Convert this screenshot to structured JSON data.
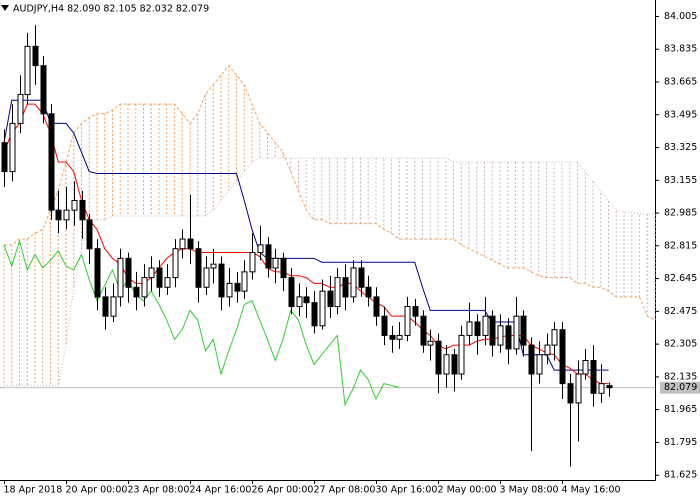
{
  "chart_data": {
    "type": "candlestick",
    "title": "AUDJPY,H4  82.090 82.105 82.032 82.079",
    "categories": [
      "18 Apr 2018",
      null,
      null,
      null,
      null,
      null,
      null,
      null,
      "20 Apr 00:00",
      null,
      null,
      null,
      null,
      null,
      null,
      null,
      "23 Apr 08:00",
      null,
      null,
      null,
      null,
      null,
      null,
      null,
      "24 Apr 16:00",
      null,
      null,
      null,
      null,
      null,
      null,
      null,
      "26 Apr 00:00",
      null,
      null,
      null,
      null,
      null,
      null,
      null,
      "27 Apr 08:00",
      null,
      null,
      null,
      null,
      null,
      null,
      null,
      "30 Apr 16:00",
      null,
      null,
      null,
      null,
      null,
      null,
      null,
      "2 May 00:00",
      null,
      null,
      null,
      null,
      null,
      null,
      null,
      "3 May 08:00",
      null,
      null,
      null,
      null,
      null,
      null,
      null,
      "4 May 16:00",
      null,
      null,
      null,
      null,
      null,
      null,
      null,
      null,
      null,
      null,
      null,
      null
    ],
    "ohlc": {
      "up_color": "#ffffff",
      "down_color": "#000000",
      "open": [
        83.35,
        83.2,
        83.45,
        83.6,
        83.85,
        83.75,
        83.5,
        83.0,
        82.95,
        83.0,
        83.05,
        82.95,
        82.8,
        82.55,
        82.45,
        82.55,
        82.75,
        82.6,
        82.55,
        82.65,
        82.7,
        82.6,
        82.65,
        82.8,
        82.85,
        82.8,
        82.6,
        82.7,
        82.72,
        82.55,
        82.62,
        82.58,
        82.68,
        82.78,
        82.82,
        82.7,
        82.75,
        82.65,
        82.5,
        82.55,
        82.52,
        82.4,
        82.58,
        82.5,
        82.65,
        82.55,
        82.7,
        82.6,
        82.55,
        82.45,
        82.35,
        82.33,
        82.35,
        82.5,
        82.45,
        82.3,
        82.32,
        82.15,
        82.25,
        82.15,
        82.35,
        82.42,
        82.35,
        82.45,
        82.3,
        82.4,
        82.28,
        82.45,
        82.3,
        82.15,
        82.25,
        82.3,
        82.38,
        82.1,
        82.0,
        82.15,
        82.22,
        82.05,
        82.09,
        null,
        null,
        null,
        null,
        null,
        null
      ],
      "high": [
        83.42,
        83.55,
        83.7,
        83.92,
        83.96,
        83.8,
        83.55,
        83.1,
        83.12,
        83.15,
        83.1,
        82.98,
        82.85,
        82.6,
        82.62,
        82.8,
        82.78,
        82.68,
        82.72,
        82.76,
        82.74,
        82.72,
        82.85,
        82.9,
        83.08,
        82.84,
        82.76,
        82.8,
        82.76,
        82.7,
        82.68,
        82.74,
        82.88,
        82.92,
        82.86,
        82.8,
        82.78,
        82.7,
        82.62,
        82.6,
        82.58,
        82.64,
        82.66,
        82.7,
        82.72,
        82.74,
        82.74,
        82.66,
        82.6,
        82.5,
        82.4,
        82.42,
        82.55,
        82.54,
        82.48,
        82.38,
        82.36,
        82.3,
        82.28,
        82.4,
        82.52,
        82.46,
        82.55,
        82.48,
        82.46,
        82.44,
        82.55,
        82.48,
        82.34,
        82.32,
        82.36,
        82.42,
        82.42,
        82.15,
        82.22,
        82.28,
        82.3,
        82.2,
        82.105,
        null,
        null,
        null,
        null,
        null,
        null
      ],
      "low": [
        83.12,
        83.15,
        83.4,
        83.55,
        83.65,
        83.45,
        82.95,
        82.88,
        82.9,
        82.92,
        82.85,
        82.72,
        82.48,
        82.38,
        82.42,
        82.5,
        82.52,
        82.48,
        82.5,
        82.58,
        82.55,
        82.56,
        82.6,
        82.75,
        82.72,
        82.52,
        82.56,
        82.62,
        82.48,
        82.5,
        82.52,
        82.54,
        82.64,
        82.74,
        82.65,
        82.62,
        82.58,
        82.46,
        82.45,
        82.44,
        82.36,
        82.38,
        82.44,
        82.46,
        82.48,
        82.52,
        82.55,
        82.5,
        82.4,
        82.3,
        82.26,
        82.28,
        82.32,
        82.4,
        82.26,
        82.22,
        82.05,
        82.08,
        82.06,
        82.12,
        82.3,
        82.25,
        82.3,
        82.24,
        82.26,
        82.2,
        82.25,
        82.24,
        81.75,
        82.1,
        82.2,
        82.22,
        82.02,
        81.67,
        81.8,
        82.12,
        81.98,
        82.0,
        82.032,
        null,
        null,
        null,
        null,
        null,
        null
      ],
      "close": [
        83.2,
        83.45,
        83.6,
        83.85,
        83.75,
        83.5,
        83.0,
        82.95,
        83.0,
        83.05,
        82.95,
        82.8,
        82.55,
        82.45,
        82.55,
        82.75,
        82.6,
        82.55,
        82.65,
        82.7,
        82.6,
        82.65,
        82.8,
        82.85,
        82.8,
        82.6,
        82.7,
        82.72,
        82.55,
        82.62,
        82.58,
        82.68,
        82.78,
        82.82,
        82.7,
        82.75,
        82.65,
        82.5,
        82.55,
        82.52,
        82.4,
        82.58,
        82.5,
        82.65,
        82.55,
        82.7,
        82.6,
        82.55,
        82.45,
        82.35,
        82.33,
        82.35,
        82.5,
        82.45,
        82.3,
        82.32,
        82.15,
        82.25,
        82.15,
        82.35,
        82.42,
        82.35,
        82.45,
        82.3,
        82.4,
        82.28,
        82.45,
        82.3,
        82.15,
        82.25,
        82.3,
        82.38,
        82.1,
        82.0,
        82.15,
        82.22,
        82.05,
        82.1,
        82.079,
        null,
        null,
        null,
        null,
        null,
        null
      ]
    },
    "lines": {
      "tenkan": {
        "color": "#ff0000",
        "values": [
          83.3,
          83.4,
          83.45,
          83.55,
          83.55,
          83.5,
          83.4,
          83.25,
          83.25,
          83.2,
          83.05,
          82.95,
          82.9,
          82.8,
          82.75,
          82.72,
          82.65,
          82.62,
          82.62,
          82.65,
          82.7,
          82.75,
          82.78,
          82.8,
          82.8,
          82.78,
          82.78,
          82.78,
          82.78,
          82.78,
          82.78,
          82.78,
          82.78,
          82.76,
          82.7,
          82.68,
          82.68,
          82.66,
          82.66,
          82.65,
          82.62,
          82.62,
          82.6,
          82.6,
          82.62,
          82.62,
          82.58,
          82.55,
          82.52,
          82.5,
          82.45,
          82.45,
          82.45,
          82.42,
          82.38,
          82.35,
          82.3,
          82.28,
          82.3,
          82.3,
          82.3,
          82.32,
          82.33,
          82.33,
          82.34,
          82.35,
          82.35,
          82.35,
          82.3,
          82.28,
          82.26,
          82.25,
          82.2,
          82.18,
          82.15,
          82.15,
          82.12,
          82.1,
          82.1,
          null,
          null,
          null,
          null,
          null,
          null
        ]
      },
      "kijun": {
        "color": "#00008b",
        "values": [
          83.35,
          83.57,
          83.57,
          83.57,
          83.57,
          83.57,
          83.45,
          83.45,
          83.45,
          83.4,
          83.3,
          83.2,
          83.19,
          83.19,
          83.19,
          83.19,
          83.19,
          83.19,
          83.19,
          83.19,
          83.19,
          83.19,
          83.19,
          83.19,
          83.19,
          83.19,
          83.19,
          83.19,
          83.19,
          83.19,
          83.19,
          83.05,
          82.9,
          82.78,
          82.75,
          82.75,
          82.75,
          82.75,
          82.75,
          82.75,
          82.75,
          82.73,
          82.73,
          82.73,
          82.73,
          82.73,
          82.73,
          82.73,
          82.73,
          82.73,
          82.73,
          82.73,
          82.73,
          82.73,
          82.6,
          82.48,
          82.48,
          82.48,
          82.48,
          82.48,
          82.48,
          82.48,
          82.48,
          82.42,
          82.42,
          82.42,
          82.42,
          82.25,
          82.25,
          82.25,
          82.25,
          82.17,
          82.17,
          82.17,
          82.17,
          82.17,
          82.17,
          82.17,
          82.17,
          null,
          null,
          null,
          null,
          null,
          null
        ]
      },
      "chikou": {
        "color": "#32cd32",
        "values": [
          82.82,
          82.71,
          82.84,
          82.69,
          82.77,
          82.7,
          82.74,
          82.79,
          82.71,
          82.69,
          82.77,
          82.64,
          82.53,
          82.61,
          82.69,
          82.58,
          82.64,
          82.56,
          82.53,
          82.58,
          82.51,
          82.43,
          82.33,
          82.38,
          82.48,
          82.43,
          82.27,
          82.33,
          82.15,
          82.27,
          82.38,
          82.51,
          82.53,
          82.43,
          82.33,
          82.22,
          82.33,
          82.48,
          82.43,
          82.3,
          82.2,
          82.25,
          82.3,
          82.35,
          81.99,
          82.07,
          82.17,
          82.12,
          82.02,
          82.1,
          82.09,
          82.08,
          null,
          null,
          null,
          null,
          null,
          null,
          null,
          null,
          null,
          null,
          null,
          null,
          null,
          null,
          null,
          null,
          null,
          null,
          null,
          null,
          null,
          null,
          null,
          null,
          null,
          null,
          null,
          null,
          null,
          null,
          null,
          null,
          null
        ]
      }
    },
    "cloud": {
      "span_a": {
        "color": "#f4a460",
        "values": [
          82.82,
          82.82,
          82.85,
          82.85,
          82.88,
          82.9,
          83.0,
          83.1,
          83.25,
          83.4,
          83.45,
          83.48,
          83.5,
          83.5,
          83.52,
          83.55,
          83.55,
          83.55,
          83.55,
          83.55,
          83.55,
          83.55,
          83.55,
          83.5,
          83.45,
          83.5,
          83.6,
          83.65,
          83.7,
          83.75,
          83.7,
          83.65,
          83.55,
          83.45,
          83.4,
          83.35,
          83.3,
          83.2,
          83.1,
          83.0,
          82.95,
          82.95,
          82.93,
          82.93,
          82.93,
          82.93,
          82.93,
          82.93,
          82.93,
          82.9,
          82.88,
          82.85,
          82.85,
          82.85,
          82.85,
          82.85,
          82.85,
          82.85,
          82.85,
          82.82,
          82.8,
          82.78,
          82.76,
          82.74,
          82.72,
          82.7,
          82.7,
          82.7,
          82.68,
          82.66,
          82.65,
          82.65,
          82.65,
          82.65,
          82.62,
          82.62,
          82.6,
          82.6,
          82.58,
          82.55,
          82.55,
          82.55,
          82.55,
          82.45,
          82.43
        ]
      },
      "span_b": {
        "color": "#c8b4c8",
        "values": [
          82.09,
          82.09,
          82.09,
          82.09,
          82.09,
          82.09,
          82.09,
          82.09,
          82.3,
          82.6,
          82.8,
          82.95,
          82.95,
          82.95,
          82.97,
          82.97,
          82.97,
          82.97,
          82.97,
          82.97,
          82.97,
          82.97,
          82.97,
          82.97,
          82.97,
          82.97,
          82.97,
          83.0,
          83.05,
          83.1,
          83.15,
          83.2,
          83.25,
          83.27,
          83.27,
          83.27,
          83.27,
          83.27,
          83.27,
          83.27,
          83.27,
          83.27,
          83.27,
          83.27,
          83.27,
          83.27,
          83.27,
          83.27,
          83.27,
          83.27,
          83.27,
          83.27,
          83.27,
          83.27,
          83.27,
          83.27,
          83.27,
          83.27,
          83.25,
          83.25,
          83.25,
          83.25,
          83.25,
          83.25,
          83.25,
          83.25,
          83.25,
          83.25,
          83.25,
          83.25,
          83.25,
          83.25,
          83.25,
          83.25,
          83.25,
          83.2,
          83.15,
          83.1,
          83.05,
          83.0,
          82.99,
          82.99,
          82.98,
          82.98,
          82.98
        ]
      }
    },
    "last_price": {
      "value": 82.079,
      "color": "#c0c0c0"
    },
    "ylim": [
      81.6,
      84.08
    ],
    "yticks": [
      84.005,
      83.835,
      83.665,
      83.495,
      83.325,
      83.155,
      82.985,
      82.815,
      82.645,
      82.475,
      82.305,
      82.135,
      81.965,
      81.795,
      81.625
    ]
  }
}
